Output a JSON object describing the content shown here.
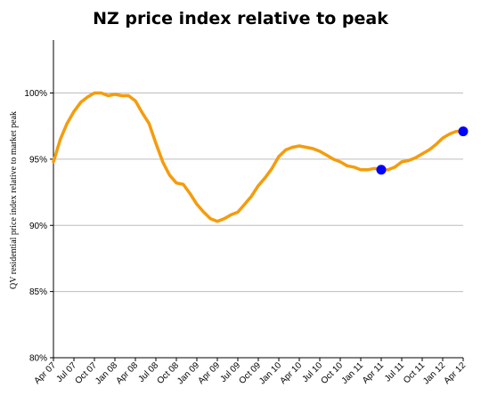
{
  "chart_data": {
    "type": "line",
    "title": "NZ price index relative to peak",
    "ylabel": "QV residential price index relative to market peak",
    "xlabel": "",
    "ylim": [
      80,
      104
    ],
    "y_ticks": [
      80,
      85,
      90,
      95,
      100
    ],
    "y_tick_labels": [
      "80%",
      "85%",
      "90%",
      "95%",
      "100%"
    ],
    "x_tick_labels": [
      "Apr 07",
      "Jul 07",
      "Oct 07",
      "Jan 08",
      "Apr 08",
      "Jul 08",
      "Oct 08",
      "Jan 09",
      "Apr 09",
      "Jul 09",
      "Oct 09",
      "Jan 10",
      "Apr 10",
      "Jul 10",
      "Oct 10",
      "Jan 11",
      "Apr 11",
      "Jul 11",
      "Oct 11",
      "Jan 12",
      "Apr 12"
    ],
    "gridlines": "horizontal",
    "line_color": "#f59c0c",
    "marker_color": "#0000ff",
    "series": [
      {
        "x": [
          "2007-04",
          "2007-05",
          "2007-06",
          "2007-07",
          "2007-08",
          "2007-09",
          "2007-10",
          "2007-11",
          "2007-12",
          "2008-01",
          "2008-02",
          "2008-03",
          "2008-04",
          "2008-05",
          "2008-06",
          "2008-07",
          "2008-08",
          "2008-09",
          "2008-10",
          "2008-11",
          "2008-12",
          "2009-01",
          "2009-02",
          "2009-03",
          "2009-04",
          "2009-05",
          "2009-06",
          "2009-07",
          "2009-08",
          "2009-09",
          "2009-10",
          "2009-11",
          "2009-12",
          "2010-01",
          "2010-02",
          "2010-03",
          "2010-04",
          "2010-05",
          "2010-06",
          "2010-07",
          "2010-08",
          "2010-09",
          "2010-10",
          "2010-11",
          "2010-12",
          "2011-01",
          "2011-02",
          "2011-03",
          "2011-04",
          "2011-05",
          "2011-06",
          "2011-07",
          "2011-08",
          "2011-09",
          "2011-10",
          "2011-11",
          "2011-12",
          "2012-01",
          "2012-02",
          "2012-03",
          "2012-04"
        ],
        "values": [
          94.8,
          96.5,
          97.7,
          98.6,
          99.3,
          99.7,
          100.0,
          100.0,
          99.8,
          99.9,
          99.8,
          99.8,
          99.4,
          98.5,
          97.7,
          96.2,
          94.8,
          93.8,
          93.2,
          93.1,
          92.4,
          91.6,
          91.0,
          90.5,
          90.3,
          90.5,
          90.8,
          91.0,
          91.6,
          92.2,
          93.0,
          93.6,
          94.3,
          95.2,
          95.7,
          95.9,
          96.0,
          95.9,
          95.8,
          95.6,
          95.3,
          95.0,
          94.8,
          94.5,
          94.4,
          94.2,
          94.2,
          94.3,
          94.2,
          94.2,
          94.4,
          94.8,
          94.9,
          95.1,
          95.4,
          95.7,
          96.1,
          96.6,
          96.9,
          97.1,
          97.1
        ]
      }
    ],
    "markers": [
      {
        "x": "2011-04",
        "value": 94.2
      },
      {
        "x": "2012-04",
        "value": 97.1
      }
    ]
  }
}
